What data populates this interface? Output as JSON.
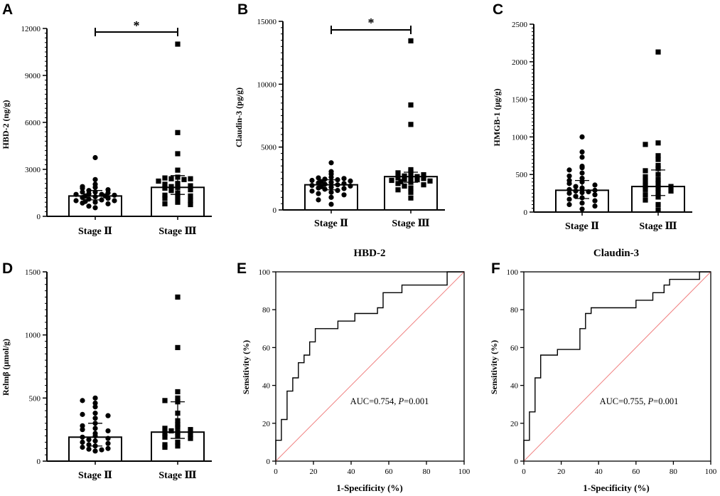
{
  "chart_data": [
    {
      "id": "A",
      "type": "scatter",
      "title": "",
      "ylabel": "HBD-2 (ng/g)",
      "xlabel": "",
      "ylim": [
        0,
        12000
      ],
      "yticks": [
        0,
        3000,
        6000,
        9000,
        12000
      ],
      "tick_labels": [
        "0",
        "3000",
        "6000",
        "9000",
        "12000"
      ],
      "significance": "*",
      "groups": [
        {
          "name": "Stage Ⅱ",
          "marker": "circle",
          "mean": 1300,
          "err_low": 1050,
          "err_high": 1650,
          "values": [
            3750,
            2350,
            2050,
            1900,
            1850,
            1800,
            1700,
            1650,
            1550,
            1550,
            1500,
            1450,
            1400,
            1400,
            1350,
            1300,
            1300,
            1250,
            1200,
            1150,
            1100,
            1050,
            1000,
            1000,
            950,
            900,
            850,
            800,
            650,
            550
          ]
        },
        {
          "name": "Stage Ⅲ",
          "marker": "square",
          "mean": 1850,
          "err_low": 1400,
          "err_high": 2600,
          "values": [
            11000,
            5350,
            4000,
            2950,
            2500,
            2450,
            2400,
            2400,
            2350,
            2250,
            2100,
            2050,
            1950,
            1900,
            1850,
            1800,
            1700,
            1650,
            1500,
            1350,
            1300,
            1200,
            1150,
            1000,
            900,
            800,
            750
          ]
        }
      ]
    },
    {
      "id": "B",
      "type": "scatter",
      "title": "",
      "ylabel": "Claudin-3 (pg/g)",
      "xlabel": "",
      "ylim": [
        0,
        15000
      ],
      "yticks": [
        0,
        5000,
        10000,
        15000
      ],
      "tick_labels": [
        "0",
        "5000",
        "10000",
        "15000"
      ],
      "significance": "*",
      "groups": [
        {
          "name": "Stage Ⅱ",
          "marker": "circle",
          "mean": 2000,
          "err_low": 1600,
          "err_high": 2400,
          "values": [
            3750,
            3050,
            2850,
            2600,
            2550,
            2500,
            2450,
            2400,
            2350,
            2300,
            2250,
            2200,
            2150,
            2100,
            2050,
            2000,
            1950,
            1900,
            1850,
            1800,
            1750,
            1700,
            1650,
            1550,
            1500,
            1400,
            1300,
            1200,
            1000,
            800,
            450
          ]
        },
        {
          "name": "Stage Ⅲ",
          "marker": "square",
          "mean": 2650,
          "err_low": 2200,
          "err_high": 3000,
          "values": [
            13450,
            8350,
            6800,
            3200,
            3000,
            2950,
            2800,
            2700,
            2650,
            2600,
            2550,
            2500,
            2450,
            2400,
            2350,
            2300,
            2250,
            2200,
            2100,
            2000,
            1900,
            1750,
            1600,
            1400,
            950
          ]
        }
      ]
    },
    {
      "id": "C",
      "type": "scatter",
      "title": "",
      "ylabel": "HMGB-1 (μg/g)",
      "xlabel": "",
      "ylim": [
        0,
        2500
      ],
      "yticks": [
        0,
        500,
        1000,
        1500,
        2000,
        2500
      ],
      "tick_labels": [
        "0",
        "500",
        "1000",
        "1500",
        "2000",
        "2500"
      ],
      "groups": [
        {
          "name": "Stage Ⅱ",
          "marker": "circle",
          "mean": 290,
          "err_low": 180,
          "err_high": 420,
          "values": [
            1000,
            800,
            730,
            610,
            590,
            560,
            520,
            480,
            450,
            420,
            400,
            380,
            360,
            340,
            320,
            300,
            290,
            280,
            270,
            260,
            250,
            230,
            210,
            190,
            170,
            150,
            120,
            100,
            80,
            40
          ]
        },
        {
          "name": "Stage Ⅲ",
          "marker": "square",
          "mean": 340,
          "err_low": 220,
          "err_high": 560,
          "values": [
            2130,
            920,
            900,
            750,
            700,
            620,
            580,
            550,
            500,
            470,
            430,
            410,
            380,
            350,
            340,
            320,
            300,
            280,
            260,
            230,
            200,
            160,
            100,
            30
          ]
        }
      ]
    },
    {
      "id": "D",
      "type": "scatter",
      "title": "",
      "ylabel": "Relmβ (μmol/g)",
      "xlabel": "",
      "ylim": [
        0,
        1500
      ],
      "yticks": [
        0,
        500,
        1000,
        1500
      ],
      "tick_labels": [
        "0",
        "500",
        "1000",
        "1500"
      ],
      "groups": [
        {
          "name": "Stage Ⅱ",
          "marker": "circle",
          "mean": 190,
          "err_low": 120,
          "err_high": 300,
          "values": [
            500,
            480,
            460,
            430,
            380,
            370,
            360,
            340,
            300,
            280,
            260,
            250,
            240,
            220,
            200,
            190,
            180,
            170,
            160,
            150,
            140,
            130,
            120,
            110,
            100,
            95,
            90,
            80
          ]
        },
        {
          "name": "Stage Ⅲ",
          "marker": "square",
          "mean": 230,
          "err_low": 180,
          "err_high": 470,
          "values": [
            1300,
            900,
            550,
            500,
            480,
            470,
            380,
            320,
            290,
            270,
            260,
            250,
            240,
            230,
            220,
            210,
            200,
            190,
            180,
            150,
            130,
            120,
            110
          ]
        }
      ]
    },
    {
      "id": "E",
      "type": "line",
      "title": "HBD-2",
      "xlabel": "1-Specificity (%)",
      "ylabel": "Sensitivity (%)",
      "xlim": [
        0,
        100
      ],
      "ylim": [
        0,
        100
      ],
      "xticks": [
        0,
        20,
        40,
        60,
        80,
        100
      ],
      "yticks": [
        0,
        20,
        40,
        60,
        80,
        100
      ],
      "xtick_labels": [
        "0",
        "20",
        "40",
        "60",
        "80",
        "100"
      ],
      "ytick_labels": [
        "0",
        "20",
        "40",
        "60",
        "80",
        "100"
      ],
      "annotation_text": "AUC=0.754, ",
      "annotation_p": "P",
      "annotation_rest": "=0.001",
      "series": [
        {
          "name": "ROC",
          "x": [
            0,
            0,
            3,
            3,
            6,
            6,
            9,
            9,
            12,
            12,
            15,
            15,
            18,
            18,
            21,
            21,
            33,
            33,
            42,
            42,
            54,
            54,
            57,
            57,
            67,
            67,
            91,
            91,
            100
          ],
          "y": [
            0,
            11,
            11,
            22,
            22,
            37,
            37,
            44,
            44,
            52,
            52,
            56,
            56,
            63,
            63,
            70,
            70,
            74,
            74,
            78,
            78,
            81,
            81,
            89,
            89,
            93,
            93,
            100,
            100
          ]
        },
        {
          "name": "Reference",
          "x": [
            0,
            100
          ],
          "y": [
            0,
            100
          ]
        }
      ]
    },
    {
      "id": "F",
      "type": "line",
      "title": "Claudin-3",
      "xlabel": "1-Specificity (%)",
      "ylabel": "Sensitivity (%)",
      "xlim": [
        0,
        100
      ],
      "ylim": [
        0,
        100
      ],
      "xticks": [
        0,
        20,
        40,
        60,
        80,
        100
      ],
      "yticks": [
        0,
        20,
        40,
        60,
        80,
        100
      ],
      "xtick_labels": [
        "0",
        "20",
        "40",
        "60",
        "80",
        "100"
      ],
      "ytick_labels": [
        "0",
        "20",
        "40",
        "60",
        "80",
        "100"
      ],
      "annotation_text": "AUC=0.755, ",
      "annotation_p": "P",
      "annotation_rest": "=0.001",
      "series": [
        {
          "name": "ROC",
          "x": [
            0,
            0,
            3,
            3,
            6,
            6,
            9,
            9,
            18,
            18,
            30,
            30,
            33,
            33,
            36,
            36,
            60,
            60,
            69,
            69,
            75,
            75,
            78,
            78,
            94,
            94,
            100
          ],
          "y": [
            0,
            11,
            11,
            26,
            26,
            44,
            44,
            56,
            56,
            59,
            59,
            70,
            70,
            78,
            78,
            81,
            81,
            85,
            85,
            89,
            89,
            93,
            93,
            96,
            96,
            100,
            100
          ]
        },
        {
          "name": "Reference",
          "x": [
            0,
            100
          ],
          "y": [
            0,
            100
          ]
        }
      ]
    }
  ],
  "colors": {
    "ink": "#000000",
    "reference_line": "#f08080",
    "bar_fill": "#ffffff",
    "background": "#ffffff"
  }
}
